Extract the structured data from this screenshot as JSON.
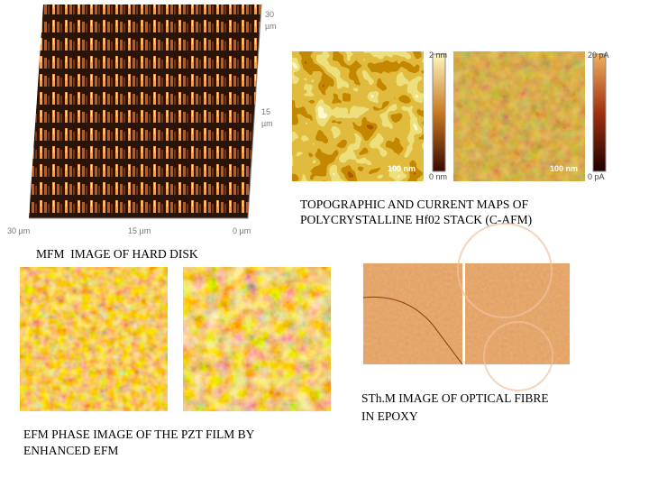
{
  "mfm": {
    "top_label": "30",
    "top_unit": "µm",
    "mid_label": "15",
    "mid_unit": "µm",
    "bottom_left": "30 µm",
    "bottom_mid": "15 µm",
    "bottom_right": "0 µm",
    "caption": "MFM  IMAGE OF HARD DISK"
  },
  "cafm": {
    "topography_max": "2 nm",
    "topography_min": "0 nm",
    "current_max": "20 pA",
    "current_min": "0 pA",
    "scale_left": "100 nm",
    "scale_right": "100 nm",
    "caption_lines": [
      "TOPOGRAPHIC AND CURRENT MAPS OF",
      "POLYCRYSTALLINE Hf02 STACK (C-AFM)"
    ]
  },
  "sthm": {
    "caption_lines": [
      "STh.M IMAGE OF OPTICAL FIBRE",
      "IN EPOXY"
    ]
  },
  "efm": {
    "caption_lines": [
      "EFM PHASE IMAGE OF THE PZT FILM BY",
      "ENHANCED EFM"
    ]
  }
}
